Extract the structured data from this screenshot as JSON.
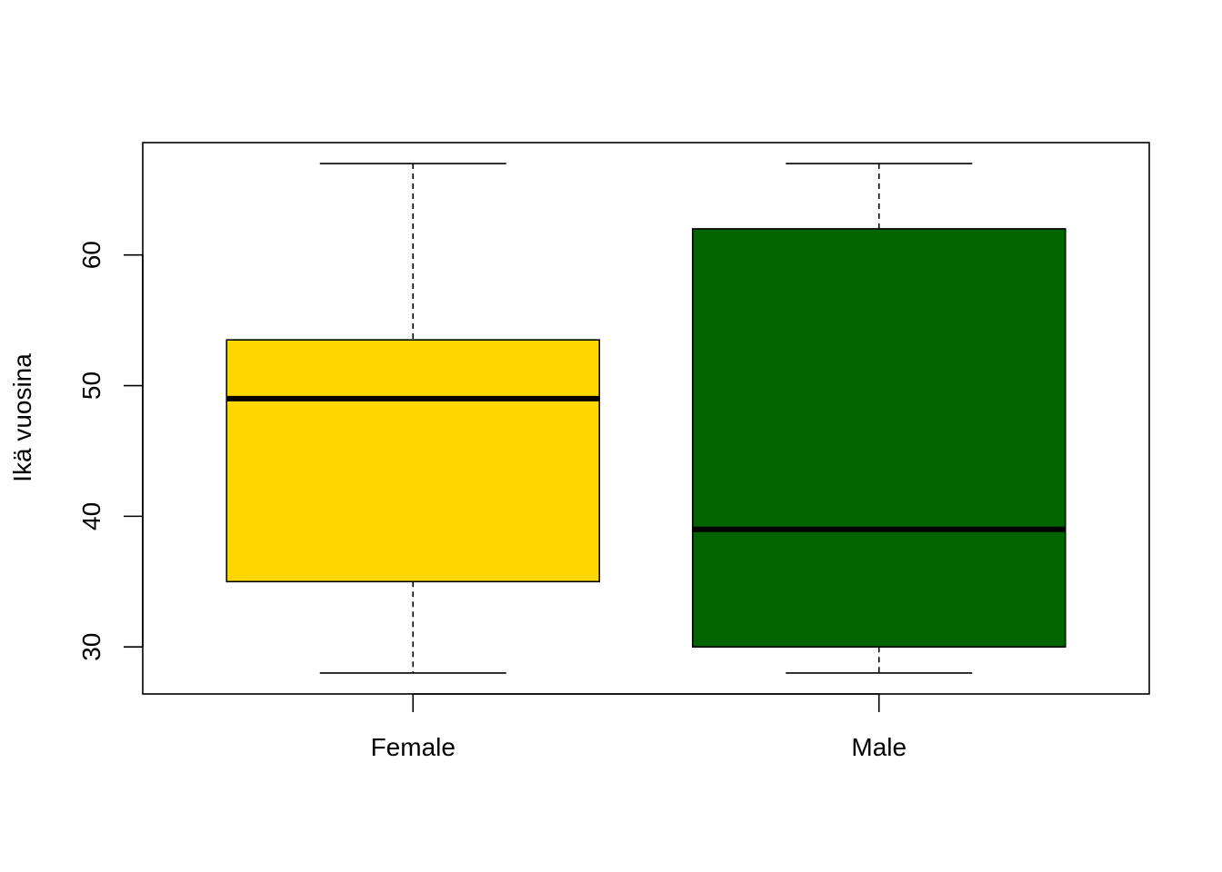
{
  "chart_data": {
    "type": "boxplot",
    "title": "",
    "xlabel": "",
    "ylabel": "Ikä vuosina",
    "categories": [
      "Female",
      "Male"
    ],
    "yticks": [
      30,
      40,
      50,
      60
    ],
    "ylim": [
      26.4,
      68.6
    ],
    "grid": false,
    "legend": "none",
    "boxes": [
      {
        "category": "Female",
        "min": 28,
        "q1": 35,
        "median": 49,
        "q3": 53.5,
        "max": 67,
        "color": "#FFD700"
      },
      {
        "category": "Male",
        "min": 28,
        "q1": 30,
        "median": 39,
        "q3": 62,
        "max": 67,
        "color": "#006400"
      }
    ]
  }
}
